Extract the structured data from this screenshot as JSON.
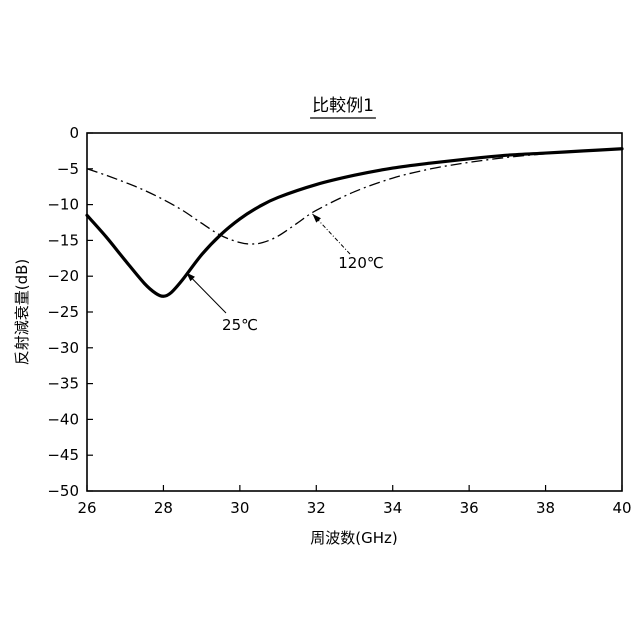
{
  "chart_data": {
    "type": "line",
    "title": "比較例1",
    "xlabel": "周波数(GHz)",
    "ylabel": "反射減衰量(dB)",
    "xlim": [
      26,
      40
    ],
    "ylim": [
      -50,
      0
    ],
    "xticks": [
      26,
      28,
      30,
      32,
      34,
      36,
      38,
      40
    ],
    "yticks": [
      0,
      -5,
      -10,
      -15,
      -20,
      -25,
      -30,
      -35,
      -40,
      -45,
      -50
    ],
    "grid": false,
    "legend": "none",
    "series": [
      {
        "name": "25℃",
        "style": "solid",
        "x": [
          26,
          26.5,
          27,
          27.5,
          27.8,
          28,
          28.2,
          28.5,
          29,
          29.5,
          30,
          30.5,
          31,
          32,
          33,
          34,
          35,
          36,
          37,
          38,
          39,
          40
        ],
        "y": [
          -11.5,
          -14.5,
          -17.8,
          -21.0,
          -22.4,
          -22.8,
          -22.3,
          -20.5,
          -17.0,
          -14.2,
          -12.0,
          -10.3,
          -9.0,
          -7.2,
          -5.9,
          -4.9,
          -4.2,
          -3.6,
          -3.1,
          -2.8,
          -2.5,
          -2.2
        ]
      },
      {
        "name": "120℃",
        "style": "dashdot",
        "x": [
          26,
          26.5,
          27,
          27.5,
          28,
          28.5,
          29,
          29.5,
          30,
          30.3,
          30.6,
          31,
          31.5,
          32,
          33,
          34,
          35,
          36,
          37,
          38,
          39,
          40
        ],
        "y": [
          -5.0,
          -5.9,
          -6.9,
          -8.0,
          -9.3,
          -10.8,
          -12.6,
          -14.3,
          -15.3,
          -15.5,
          -15.3,
          -14.4,
          -12.6,
          -10.8,
          -8.2,
          -6.3,
          -5.0,
          -4.1,
          -3.4,
          -2.9,
          -2.5,
          -2.2
        ]
      }
    ],
    "annotations": [
      {
        "text": "25℃",
        "series": "25℃",
        "x": 28.6,
        "y": -19.5
      },
      {
        "text": "120℃",
        "series": "120℃",
        "x": 31.9,
        "y": -11.3
      }
    ]
  }
}
